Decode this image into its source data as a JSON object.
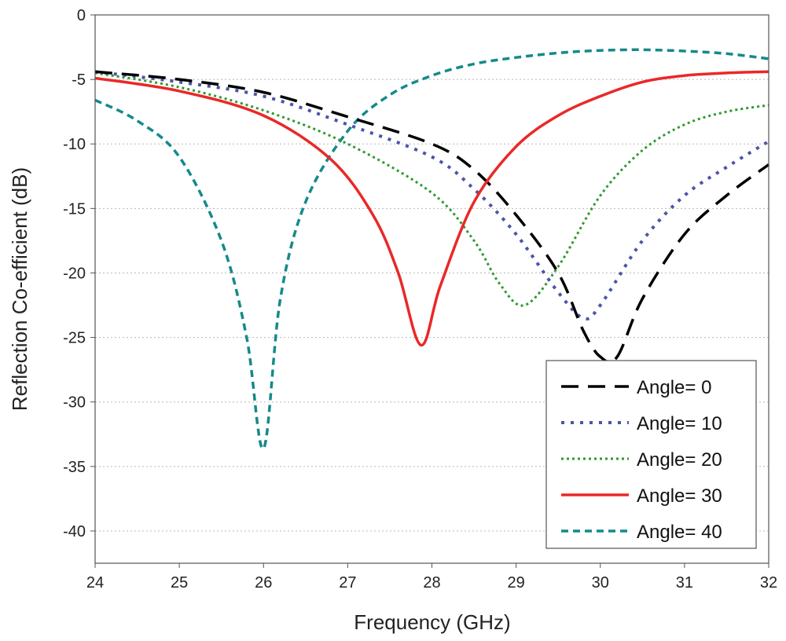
{
  "chart_data": {
    "type": "line",
    "title": "",
    "xlabel": "Frequency (GHz)",
    "ylabel": "Reflection Co-efficient (dB)",
    "xlim": [
      24,
      32
    ],
    "ylim": [
      -42.5,
      0
    ],
    "xticks": [
      24,
      25,
      26,
      27,
      28,
      29,
      30,
      31,
      32
    ],
    "yticks": [
      0,
      -5,
      -10,
      -15,
      -20,
      -25,
      -30,
      -35,
      -40
    ],
    "grid": "horizontal dotted",
    "legend_position": "bottom-right",
    "series": [
      {
        "name": "Angle= 0",
        "color": "#000000",
        "style": "long-dash",
        "x": [
          24,
          25,
          26,
          27,
          28,
          28.5,
          29,
          29.5,
          29.8,
          30,
          30.2,
          30.5,
          31,
          31.5,
          32
        ],
        "y": [
          -4.4,
          -5.0,
          -6.0,
          -7.9,
          -10.0,
          -12.0,
          -15.5,
          -20.0,
          -24.5,
          -26.5,
          -26.5,
          -22.0,
          -17.0,
          -14.0,
          -11.6
        ]
      },
      {
        "name": "Angle= 10",
        "color": "#4b55a8",
        "style": "dot",
        "x": [
          24,
          25,
          26,
          27,
          28,
          28.5,
          29,
          29.5,
          29.8,
          30,
          30.5,
          31,
          31.5,
          32
        ],
        "y": [
          -4.4,
          -5.2,
          -6.3,
          -8.5,
          -11.0,
          -13.5,
          -17.0,
          -21.5,
          -23.5,
          -22.5,
          -17.5,
          -14.0,
          -11.8,
          -9.8
        ]
      },
      {
        "name": "Angle= 20",
        "color": "#2e9a2e",
        "style": "fine-dot",
        "x": [
          24,
          25,
          26,
          27,
          28,
          28.5,
          28.8,
          29.1,
          29.5,
          30,
          30.5,
          31,
          31.5,
          32
        ],
        "y": [
          -4.5,
          -5.6,
          -7.4,
          -10.0,
          -13.8,
          -17.5,
          -20.8,
          -22.5,
          -19.5,
          -14.0,
          -10.5,
          -8.5,
          -7.5,
          -7.0
        ]
      },
      {
        "name": "Angle= 30",
        "color": "#ea2828",
        "style": "solid",
        "x": [
          24,
          25,
          26,
          26.8,
          27.3,
          27.6,
          27.87,
          28.1,
          28.5,
          29,
          29.5,
          30,
          30.5,
          31,
          31.5,
          32
        ],
        "y": [
          -4.9,
          -5.9,
          -7.8,
          -11.2,
          -15.5,
          -20.0,
          -25.6,
          -21.0,
          -14.5,
          -10.2,
          -7.8,
          -6.3,
          -5.2,
          -4.7,
          -4.5,
          -4.4
        ]
      },
      {
        "name": "Angle= 40",
        "color": "#148a8a",
        "style": "short-dash",
        "x": [
          24,
          24.5,
          25,
          25.5,
          25.8,
          26,
          26.2,
          26.5,
          27,
          27.5,
          28,
          28.5,
          29,
          29.5,
          30,
          30.5,
          31,
          31.5,
          32
        ],
        "y": [
          -6.6,
          -8.2,
          -11.0,
          -17.5,
          -25.0,
          -33.6,
          -22.0,
          -14.5,
          -9.0,
          -6.2,
          -4.7,
          -3.8,
          -3.3,
          -2.95,
          -2.75,
          -2.7,
          -2.8,
          -3.0,
          -3.4
        ]
      }
    ]
  }
}
